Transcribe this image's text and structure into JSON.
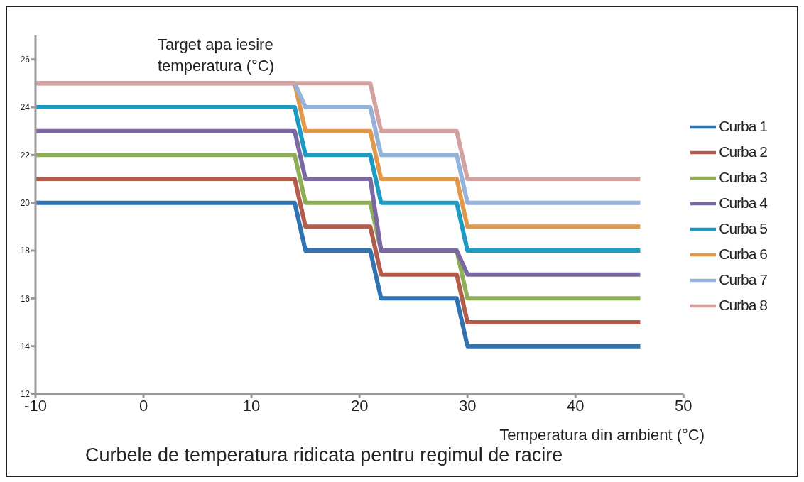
{
  "chart_data": {
    "type": "line",
    "title": "Curbele de temperatura ridicata pentru regimul de racire",
    "xlabel": "Temperatura din ambient (°C)",
    "ylabel": "Target apa iesire temperatura (°C)",
    "x": [
      -10,
      14,
      15,
      21,
      22,
      29,
      30,
      46
    ],
    "series": [
      {
        "name": "Curba 1",
        "color": "#2f73b3",
        "values": [
          20,
          20,
          18,
          18,
          16,
          16,
          14,
          14
        ]
      },
      {
        "name": "Curba 2",
        "color": "#b35c4c",
        "values": [
          21,
          21,
          19,
          19,
          17,
          17,
          15,
          15
        ]
      },
      {
        "name": "Curba 3",
        "color": "#8fae58",
        "values": [
          22,
          22,
          20,
          20,
          18,
          18,
          16,
          16
        ]
      },
      {
        "name": "Curba 4",
        "color": "#7b68a2",
        "values": [
          23,
          23,
          21,
          21,
          18,
          18,
          17,
          17
        ]
      },
      {
        "name": "Curba 5",
        "color": "#1d9bc2",
        "values": [
          24,
          24,
          22,
          22,
          20,
          20,
          18,
          18
        ]
      },
      {
        "name": "Curba 6",
        "color": "#e0984a",
        "values": [
          25,
          25,
          23,
          23,
          21,
          21,
          19,
          19
        ]
      },
      {
        "name": "Curba 7",
        "color": "#94b2da",
        "values": [
          25,
          25,
          24,
          24,
          22,
          22,
          20,
          20
        ]
      },
      {
        "name": "Curba 8",
        "color": "#d4a1a1",
        "values": [
          25,
          25,
          25,
          25,
          23,
          23,
          21,
          21
        ]
      }
    ],
    "xlim": [
      -10,
      50
    ],
    "xticks": [
      -10,
      0,
      10,
      20,
      30,
      40,
      50
    ],
    "ylim": [
      12,
      27
    ],
    "yticks": [
      12,
      14,
      16,
      18,
      20,
      22,
      24,
      26
    ],
    "grid": false,
    "legend": "right",
    "marker": "none",
    "line_style": "solid"
  }
}
